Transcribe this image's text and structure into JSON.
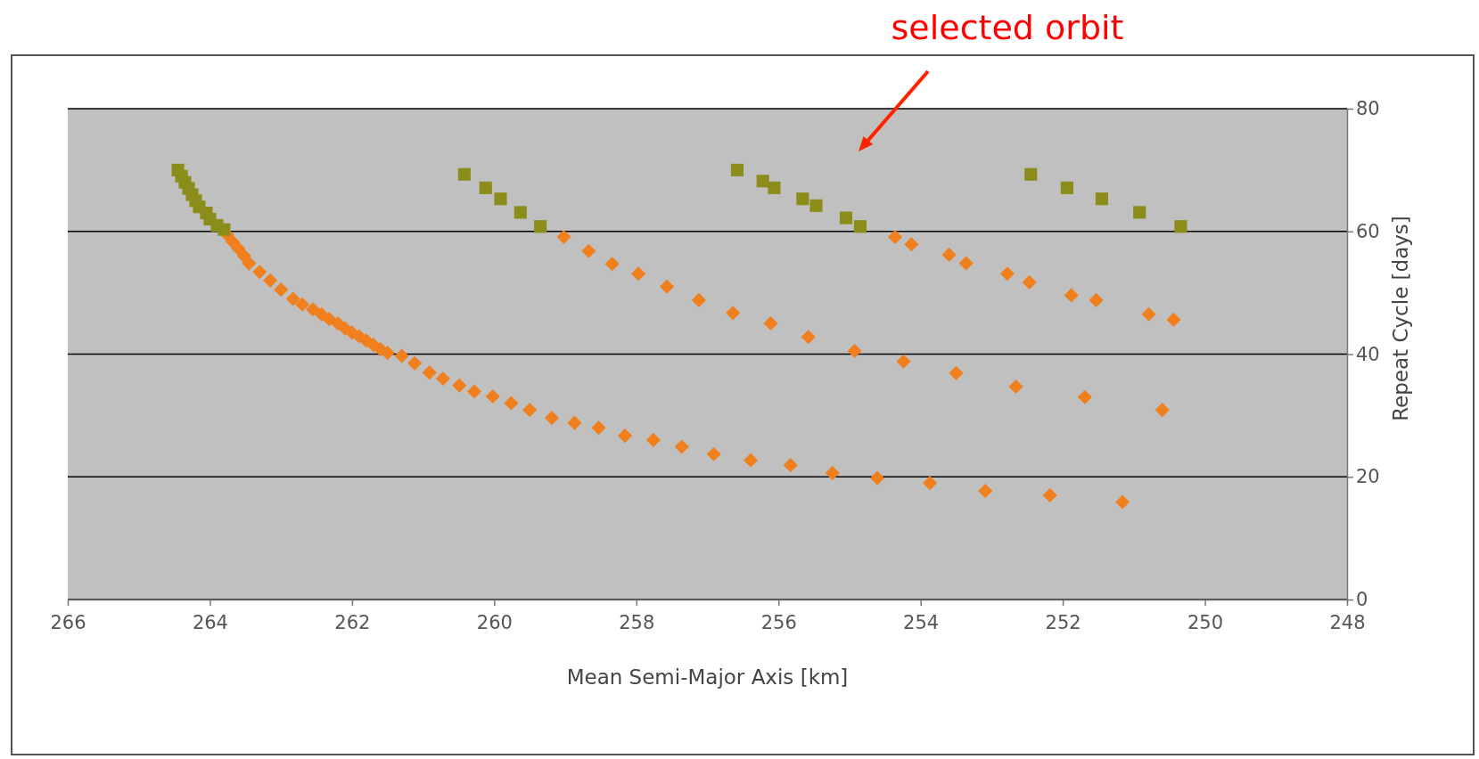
{
  "chart_data": {
    "type": "scatter",
    "xlabel": "Mean Semi-Major Axis [km]",
    "ylabel": "Repeat Cycle [days]",
    "xlim": [
      266,
      248
    ],
    "xticks": [
      266,
      264,
      262,
      260,
      258,
      256,
      254,
      252,
      250,
      248
    ],
    "ylim": [
      0,
      80
    ],
    "yticks": [
      0,
      20,
      40,
      60,
      80
    ],
    "grid": "y",
    "annotations": [
      "selected orbit"
    ],
    "series": [
      {
        "color": "#f07f1e",
        "marker": "diamond",
        "x": [
          263.76,
          263.68,
          263.6,
          263.52,
          263.45,
          263.3,
          263.15,
          263.0,
          262.83,
          262.7,
          262.55,
          262.43,
          262.32,
          262.2,
          262.1,
          262.0,
          261.9,
          261.8,
          261.7,
          261.6,
          261.5,
          261.3,
          261.12,
          260.91,
          260.72,
          260.49,
          260.28,
          260.02,
          259.76,
          259.5,
          259.19,
          258.87,
          258.53,
          258.16,
          257.76,
          257.36,
          256.91,
          256.39,
          255.83,
          255.24,
          254.61,
          253.87,
          253.09,
          252.18,
          251.16,
          259.02,
          258.67,
          258.34,
          257.97,
          257.57,
          257.12,
          256.64,
          256.11,
          255.58,
          254.93,
          254.24,
          253.5,
          252.66,
          251.69,
          250.6,
          254.36,
          254.13,
          253.6,
          253.36,
          252.78,
          252.47,
          251.88,
          251.53,
          250.79,
          250.44
        ],
        "values": [
          59.5,
          58.3,
          57.2,
          56,
          54.8,
          53.4,
          52,
          50.5,
          49,
          48.1,
          47.3,
          46.5,
          45.7,
          45,
          44.2,
          43.5,
          42.9,
          42.2,
          41.5,
          40.8,
          40.2,
          39.7,
          38.5,
          37,
          36,
          34.9,
          33.9,
          33.1,
          32,
          30.9,
          29.6,
          28.8,
          28,
          26.7,
          26,
          24.9,
          23.7,
          22.7,
          21.9,
          20.6,
          19.8,
          19,
          17.7,
          17,
          15.9,
          59.1,
          56.8,
          54.7,
          53.1,
          51,
          48.8,
          46.7,
          45,
          42.8,
          40.5,
          38.8,
          36.9,
          34.7,
          33,
          30.9,
          59.1,
          57.9,
          56.2,
          54.8,
          53.1,
          51.7,
          49.6,
          48.8,
          46.5,
          45.6
        ]
      },
      {
        "color": "#8c8c1a",
        "marker": "square",
        "x": [
          264.45,
          264.4,
          264.35,
          264.3,
          264.25,
          264.2,
          264.15,
          264.05,
          264.0,
          263.9,
          263.8,
          260.42,
          260.12,
          259.91,
          259.63,
          259.35,
          256.58,
          256.22,
          256.06,
          255.66,
          255.47,
          255.05,
          254.85,
          252.45,
          251.94,
          251.45,
          250.92,
          250.34
        ],
        "values": [
          70,
          69,
          68,
          67,
          66,
          65,
          64,
          63,
          62,
          61,
          60.3,
          69.3,
          67.1,
          65.3,
          63.1,
          60.8,
          70,
          68.2,
          67.1,
          65.3,
          64.2,
          62.2,
          60.8,
          69.3,
          67.1,
          65.3,
          63.1,
          60.8
        ]
      }
    ]
  }
}
